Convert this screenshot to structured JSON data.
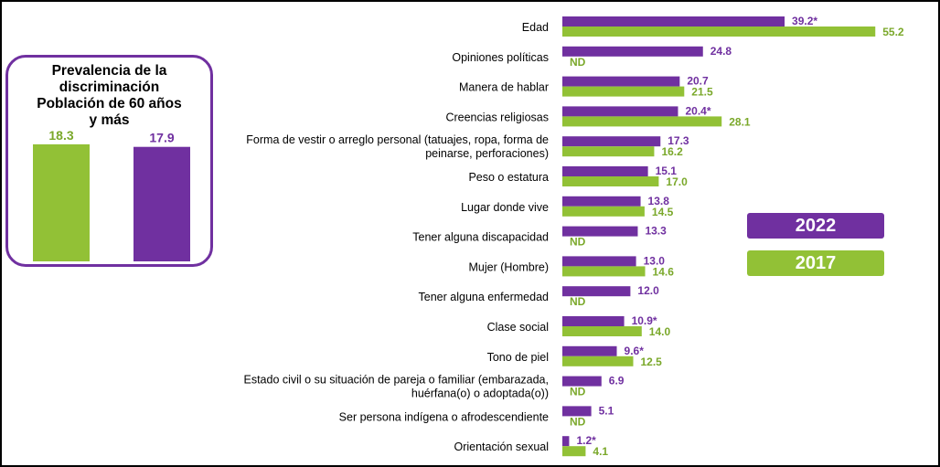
{
  "colors": {
    "series_2022": "#7030a0",
    "series_2017": "#92c136",
    "label_2022": "#7030a0",
    "label_2017": "#7aa82a"
  },
  "inset": {
    "title_line1": "Prevalencia de la",
    "title_line2": "discriminación",
    "title_line3": "Población de 60 años",
    "title_line4": "y más",
    "bars": [
      {
        "label": "18.3",
        "value": 18.3,
        "series": "2017"
      },
      {
        "label": "17.9",
        "value": 17.9,
        "series": "2022"
      }
    ]
  },
  "legend": {
    "label_2022": "2022",
    "label_2017": "2017"
  },
  "chart_data": {
    "type": "bar",
    "orientation": "horizontal",
    "title": "",
    "xlabel": "",
    "ylabel": "",
    "grid": false,
    "legend_position": "right",
    "categories": [
      [
        "Edad"
      ],
      [
        "Opiniones políticas"
      ],
      [
        "Manera de hablar"
      ],
      [
        "Creencias religiosas"
      ],
      [
        "Forma de vestir o arreglo personal (tatuajes, ropa, forma de",
        "peinarse, perforaciones)"
      ],
      [
        "Peso o estatura"
      ],
      [
        "Lugar donde vive"
      ],
      [
        "Tener alguna discapacidad"
      ],
      [
        "Mujer (Hombre)"
      ],
      [
        "Tener alguna enfermedad"
      ],
      [
        "Clase social"
      ],
      [
        "Tono de piel"
      ],
      [
        "Estado civil o su situación de pareja o familiar (embarazada,",
        "huérfana(o) o adoptada(o))"
      ],
      [
        "Ser persona indígena o afrodescendiente"
      ],
      [
        "Orientación sexual"
      ]
    ],
    "series": [
      {
        "name": "2022",
        "values": [
          39.2,
          24.8,
          20.7,
          20.4,
          17.3,
          15.1,
          13.8,
          13.3,
          13.0,
          12.0,
          10.9,
          9.6,
          6.9,
          5.1,
          1.2
        ],
        "labels": [
          "39.2*",
          "24.8",
          "20.7",
          "20.4*",
          "17.3",
          "15.1",
          "13.8",
          "13.3",
          "13.0",
          "12.0",
          "10.9*",
          "9.6*",
          "6.9",
          "5.1",
          "1.2*"
        ]
      },
      {
        "name": "2017",
        "values": [
          55.2,
          null,
          21.5,
          28.1,
          16.2,
          17.0,
          14.5,
          null,
          14.6,
          null,
          14.0,
          12.5,
          null,
          null,
          4.1
        ],
        "labels": [
          "55.2",
          "ND",
          "21.5",
          "28.1",
          "16.2",
          "17.0",
          "14.5",
          "ND",
          "14.6",
          "ND",
          "14.0",
          "12.5",
          "ND",
          "ND",
          "4.1"
        ]
      }
    ]
  }
}
